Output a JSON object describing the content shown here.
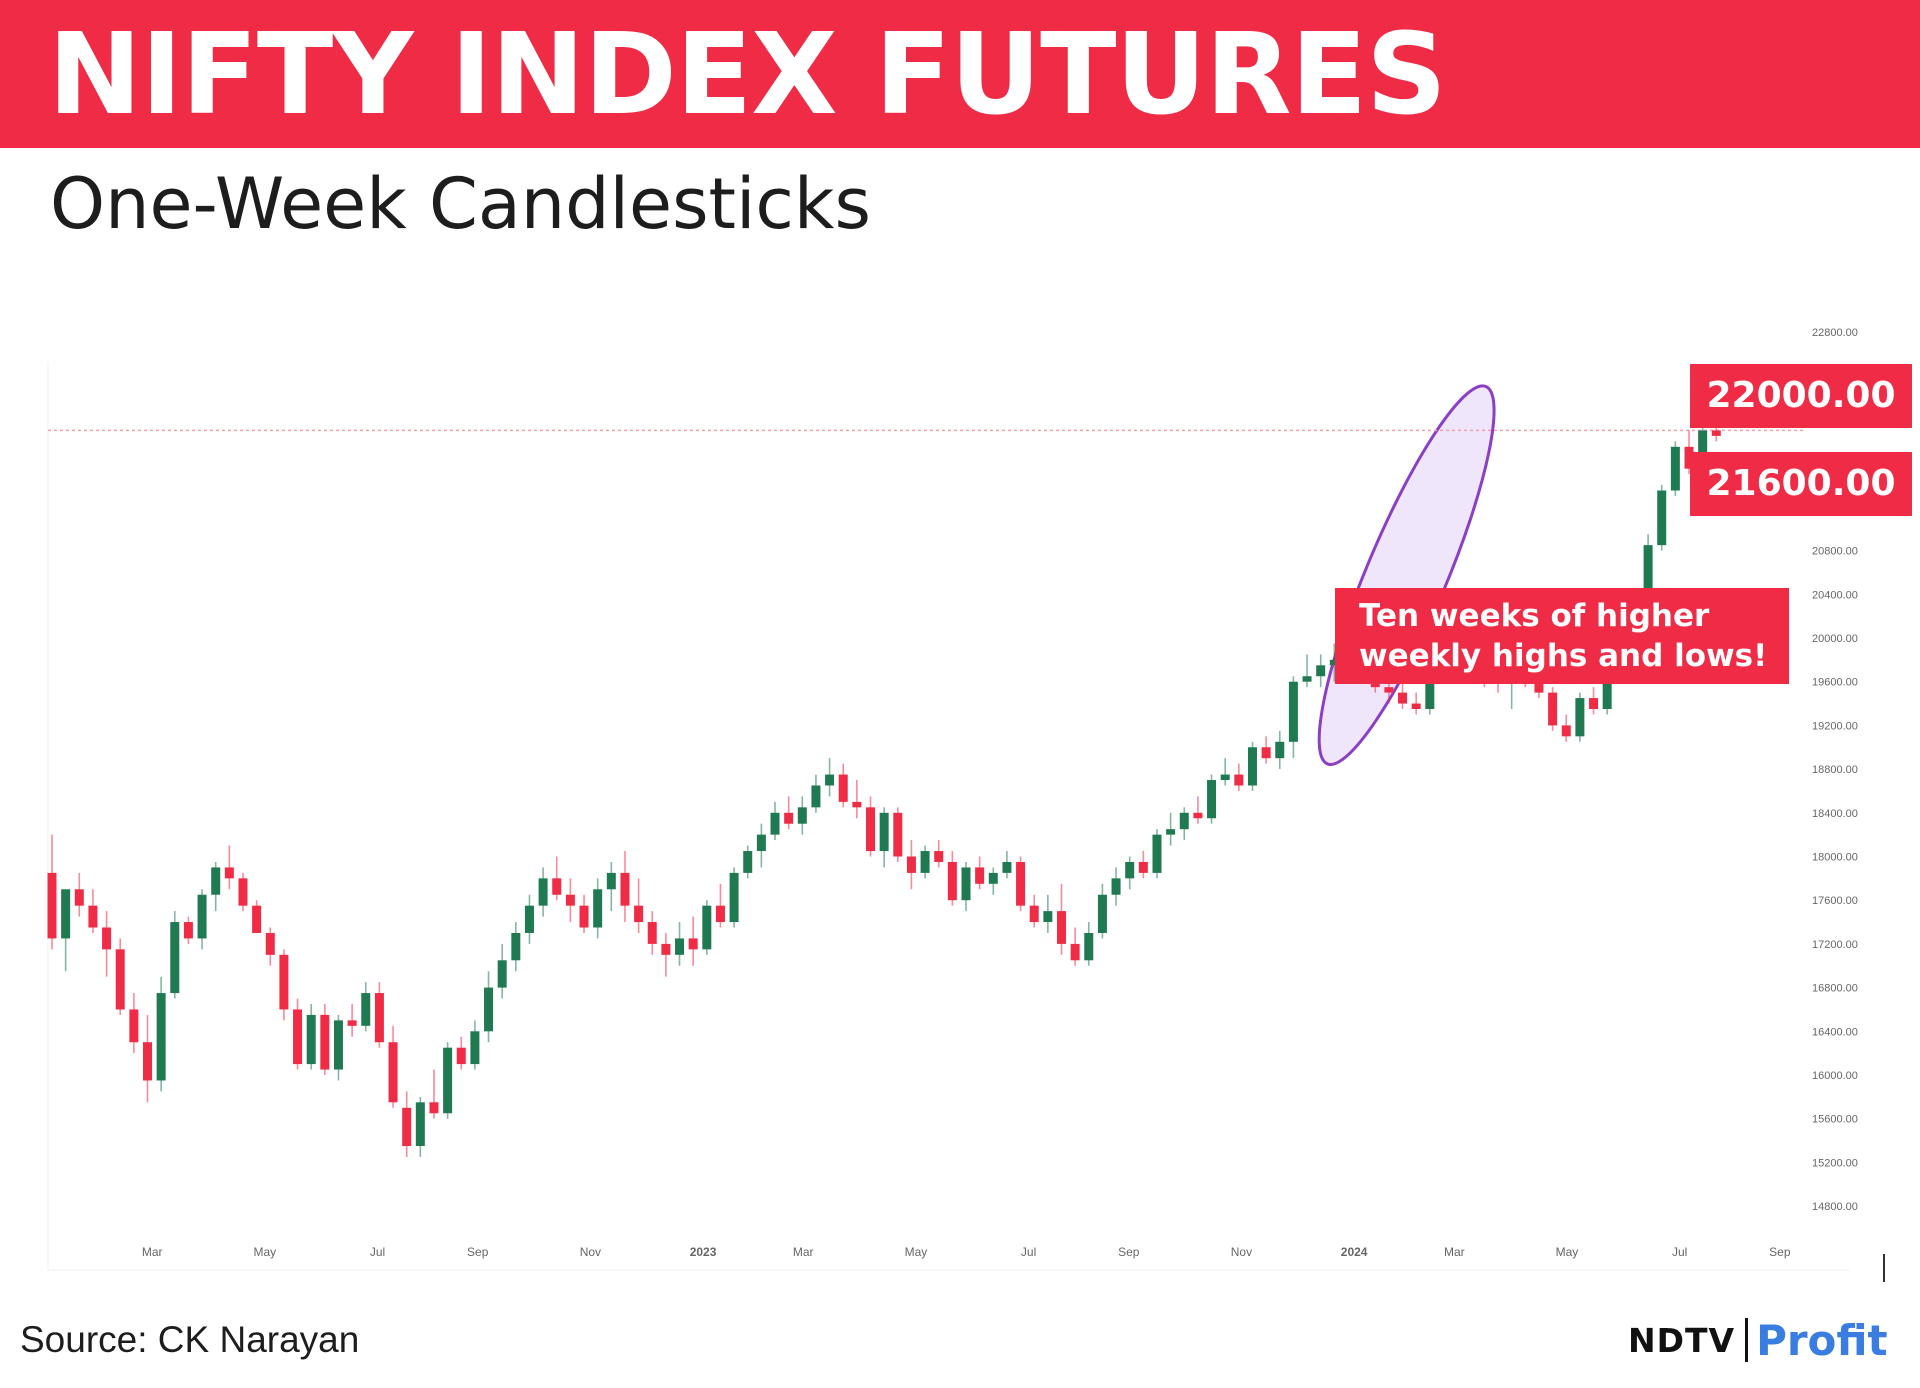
{
  "header": {
    "title": "NIFTY INDEX FUTURES",
    "subtitle": "One-Week Candlesticks"
  },
  "price_labels": [
    "22000.00",
    "21600.00"
  ],
  "annotation": [
    "Ten weeks of higher",
    "weekly highs and lows!"
  ],
  "footer": {
    "source": "Source: CK Narayan",
    "logo_primary": "NDTV",
    "logo_secondary": "Profit"
  },
  "colors": {
    "brand_red": "#ef2b45",
    "bullish": "#1f7a52",
    "bearish": "#ef2b45",
    "highlight_stroke": "#8a3fc4",
    "highlight_fill": "#e9defa",
    "reference_line": "#f3a0a8",
    "logo_blue": "#3a7de0"
  },
  "chart_data": {
    "type": "candlestick",
    "title": "NIFTY INDEX FUTURES",
    "subtitle": "One-Week Candlesticks",
    "y_axis": {
      "ticks": [
        "22800.00",
        "20800.00",
        "20400.00",
        "20000.00",
        "19600.00",
        "19200.00",
        "18800.00",
        "18400.00",
        "18000.00",
        "17600.00",
        "17200.00",
        "16800.00",
        "16400.00",
        "16000.00",
        "15600.00",
        "15200.00",
        "14800.00"
      ],
      "range": [
        14800,
        22800
      ],
      "position": "right"
    },
    "x_axis": {
      "ticks": [
        "Mar",
        "May",
        "Jul",
        "Sep",
        "Nov",
        "2023",
        "Mar",
        "May",
        "Jul",
        "Sep",
        "Nov",
        "2024",
        "Mar",
        "May",
        "Jul",
        "Sep"
      ],
      "range_weeks": [
        0,
        134
      ]
    },
    "reference_line": 21900,
    "highlight": {
      "from_week": 94,
      "to_week": 104,
      "note": "Ten weeks of higher weekly highs and lows!"
    },
    "candles": [
      [
        17850,
        18200,
        17150,
        17250
      ],
      [
        17250,
        17650,
        16950,
        17700
      ],
      [
        17700,
        17850,
        17450,
        17550
      ],
      [
        17550,
        17700,
        17300,
        17350
      ],
      [
        17350,
        17500,
        16900,
        17150
      ],
      [
        17150,
        17250,
        16550,
        16600
      ],
      [
        16600,
        16750,
        16200,
        16300
      ],
      [
        16300,
        16550,
        15750,
        15950
      ],
      [
        15950,
        16900,
        15850,
        16750
      ],
      [
        16750,
        17500,
        16700,
        17400
      ],
      [
        17400,
        17450,
        17200,
        17250
      ],
      [
        17250,
        17700,
        17150,
        17650
      ],
      [
        17650,
        17950,
        17500,
        17900
      ],
      [
        17900,
        18100,
        17700,
        17800
      ],
      [
        17800,
        17850,
        17500,
        17550
      ],
      [
        17550,
        17600,
        17300,
        17300
      ],
      [
        17300,
        17350,
        17000,
        17100
      ],
      [
        17100,
        17150,
        16500,
        16600
      ],
      [
        16600,
        16700,
        16050,
        16100
      ],
      [
        16100,
        16650,
        16050,
        16550
      ],
      [
        16550,
        16650,
        16000,
        16050
      ],
      [
        16050,
        16550,
        15950,
        16500
      ],
      [
        16500,
        16650,
        16350,
        16450
      ],
      [
        16450,
        16850,
        16400,
        16750
      ],
      [
        16750,
        16850,
        16250,
        16300
      ],
      [
        16300,
        16450,
        15700,
        15750
      ],
      [
        15700,
        15850,
        15250,
        15350
      ],
      [
        15350,
        15800,
        15250,
        15750
      ],
      [
        15750,
        16050,
        15600,
        15650
      ],
      [
        15650,
        16300,
        15600,
        16250
      ],
      [
        16250,
        16350,
        16050,
        16100
      ],
      [
        16100,
        16500,
        16050,
        16400
      ],
      [
        16400,
        16950,
        16300,
        16800
      ],
      [
        16800,
        17200,
        16700,
        17050
      ],
      [
        17050,
        17400,
        16950,
        17300
      ],
      [
        17300,
        17650,
        17200,
        17550
      ],
      [
        17550,
        17900,
        17450,
        17800
      ],
      [
        17800,
        18000,
        17600,
        17650
      ],
      [
        17650,
        17800,
        17400,
        17550
      ],
      [
        17550,
        17650,
        17300,
        17350
      ],
      [
        17350,
        17800,
        17250,
        17700
      ],
      [
        17700,
        17950,
        17500,
        17850
      ],
      [
        17850,
        18050,
        17400,
        17550
      ],
      [
        17550,
        17800,
        17300,
        17400
      ],
      [
        17400,
        17500,
        17100,
        17200
      ],
      [
        17200,
        17300,
        16900,
        17100
      ],
      [
        17100,
        17400,
        17000,
        17250
      ],
      [
        17250,
        17450,
        17000,
        17150
      ],
      [
        17150,
        17600,
        17100,
        17550
      ],
      [
        17550,
        17750,
        17350,
        17400
      ],
      [
        17400,
        17900,
        17350,
        17850
      ],
      [
        17850,
        18100,
        17800,
        18050
      ],
      [
        18050,
        18300,
        17900,
        18200
      ],
      [
        18200,
        18500,
        18150,
        18400
      ],
      [
        18400,
        18550,
        18250,
        18300
      ],
      [
        18300,
        18550,
        18200,
        18450
      ],
      [
        18450,
        18750,
        18400,
        18650
      ],
      [
        18650,
        18900,
        18550,
        18750
      ],
      [
        18750,
        18850,
        18450,
        18500
      ],
      [
        18500,
        18700,
        18350,
        18450
      ],
      [
        18450,
        18550,
        18000,
        18050
      ],
      [
        18050,
        18450,
        17900,
        18400
      ],
      [
        18400,
        18450,
        17950,
        18000
      ],
      [
        18000,
        18150,
        17700,
        17850
      ],
      [
        17850,
        18100,
        17800,
        18050
      ],
      [
        18050,
        18150,
        17900,
        17950
      ],
      [
        17950,
        18050,
        17550,
        17600
      ],
      [
        17600,
        17950,
        17500,
        17900
      ],
      [
        17900,
        18000,
        17700,
        17750
      ],
      [
        17750,
        17900,
        17650,
        17850
      ],
      [
        17850,
        18050,
        17800,
        17950
      ],
      [
        17950,
        18000,
        17500,
        17550
      ],
      [
        17550,
        17650,
        17350,
        17400
      ],
      [
        17400,
        17650,
        17300,
        17500
      ],
      [
        17500,
        17750,
        17100,
        17200
      ],
      [
        17200,
        17350,
        17000,
        17050
      ],
      [
        17050,
        17400,
        17000,
        17300
      ],
      [
        17300,
        17750,
        17250,
        17650
      ],
      [
        17650,
        17900,
        17550,
        17800
      ],
      [
        17800,
        18000,
        17700,
        17950
      ],
      [
        17950,
        18050,
        17800,
        17850
      ],
      [
        17850,
        18250,
        17800,
        18200
      ],
      [
        18200,
        18400,
        18100,
        18250
      ],
      [
        18250,
        18450,
        18150,
        18400
      ],
      [
        18400,
        18550,
        18300,
        18350
      ],
      [
        18350,
        18750,
        18300,
        18700
      ],
      [
        18700,
        18900,
        18650,
        18750
      ],
      [
        18750,
        18850,
        18600,
        18650
      ],
      [
        18650,
        19050,
        18600,
        19000
      ],
      [
        19000,
        19100,
        18850,
        18900
      ],
      [
        18900,
        19150,
        18800,
        19050
      ],
      [
        19050,
        19650,
        18900,
        19600
      ],
      [
        19600,
        19850,
        19550,
        19650
      ],
      [
        19650,
        19850,
        19550,
        19750
      ],
      [
        19750,
        19950,
        19600,
        19800
      ],
      [
        19800,
        20000,
        19650,
        19850
      ],
      [
        19850,
        19900,
        19600,
        19650
      ],
      [
        19650,
        19700,
        19500,
        19550
      ],
      [
        19550,
        19650,
        19400,
        19500
      ],
      [
        19500,
        19600,
        19350,
        19400
      ],
      [
        19400,
        19500,
        19300,
        19350
      ],
      [
        19350,
        19700,
        19300,
        19650
      ],
      [
        19650,
        20050,
        19600,
        20000
      ],
      [
        20000,
        20350,
        19950,
        20300
      ],
      [
        20300,
        20300,
        19700,
        19750
      ],
      [
        19750,
        19800,
        19550,
        19650
      ],
      [
        19650,
        19700,
        19500,
        19600
      ],
      [
        19600,
        19750,
        19350,
        19700
      ],
      [
        19700,
        19850,
        19550,
        19600
      ],
      [
        19600,
        19650,
        19450,
        19500
      ],
      [
        19500,
        19550,
        19150,
        19200
      ],
      [
        19200,
        19300,
        19050,
        19100
      ],
      [
        19100,
        19500,
        19050,
        19450
      ],
      [
        19450,
        19550,
        19300,
        19350
      ],
      [
        19350,
        19750,
        19300,
        19700
      ],
      [
        19700,
        19850,
        19650,
        19800
      ],
      [
        19800,
        20400,
        19750,
        20350
      ],
      [
        20350,
        20950,
        20300,
        20850
      ],
      [
        20850,
        21400,
        20800,
        21350
      ],
      [
        21350,
        21800,
        21300,
        21750
      ],
      [
        21750,
        21900,
        21500,
        21550
      ],
      [
        21550,
        22000,
        21450,
        21900
      ],
      [
        21900,
        22050,
        21800,
        21850
      ]
    ]
  }
}
